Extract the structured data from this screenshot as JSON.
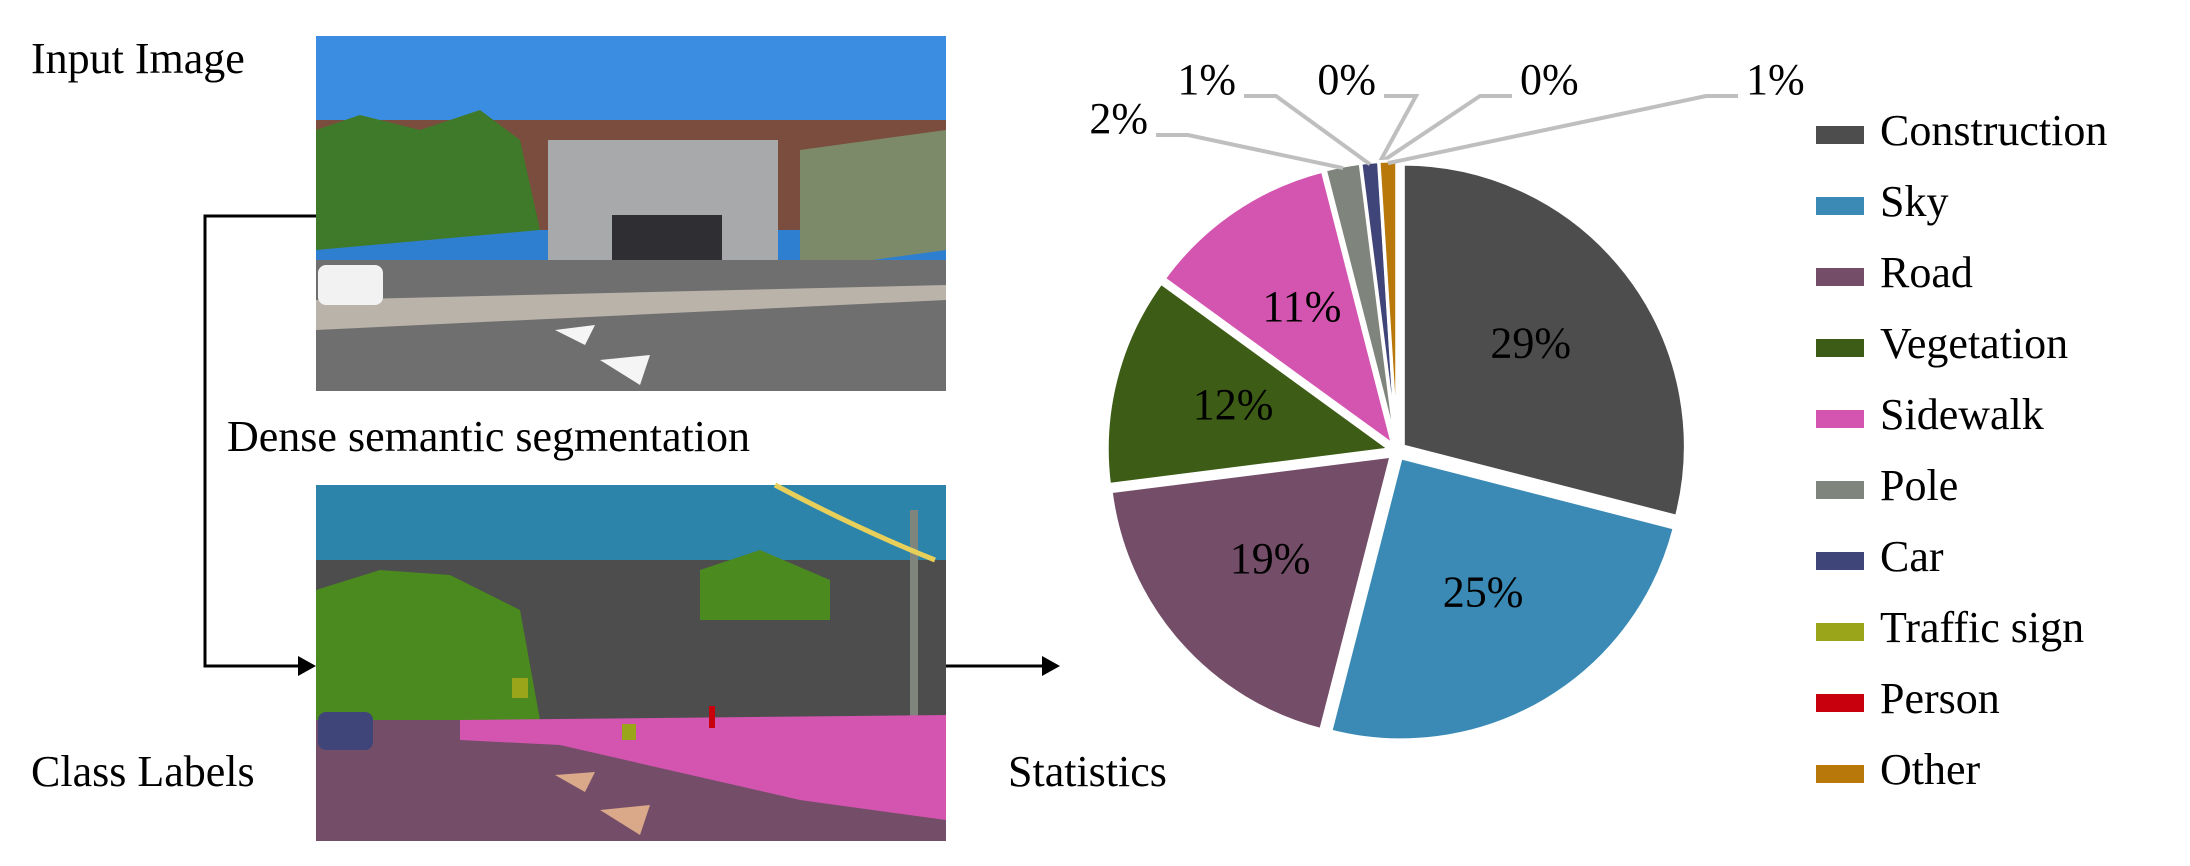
{
  "labels": {
    "input_image": "Input Image",
    "segmentation": "Dense semantic segmentation",
    "class_labels": "Class Labels",
    "statistics": "Statistics"
  },
  "chart_data": {
    "type": "pie",
    "categories": [
      "Construction",
      "Sky",
      "Road",
      "Vegetation",
      "Sidewalk",
      "Pole",
      "Car",
      "Traffic sign",
      "Person",
      "Other"
    ],
    "values": [
      29,
      25,
      19,
      12,
      11,
      2,
      1,
      0,
      0,
      1
    ],
    "value_labels": [
      "29%",
      "25%",
      "19%",
      "12%",
      "11%",
      "2%",
      "1%",
      "0%",
      "0%",
      "1%"
    ],
    "colors": [
      "#4d4d4d",
      "#3a8ab5",
      "#744d68",
      "#3d5c16",
      "#d455b0",
      "#7f857c",
      "#3f4578",
      "#9aa51a",
      "#c8000e",
      "#b8780a"
    ],
    "legend": "right"
  }
}
